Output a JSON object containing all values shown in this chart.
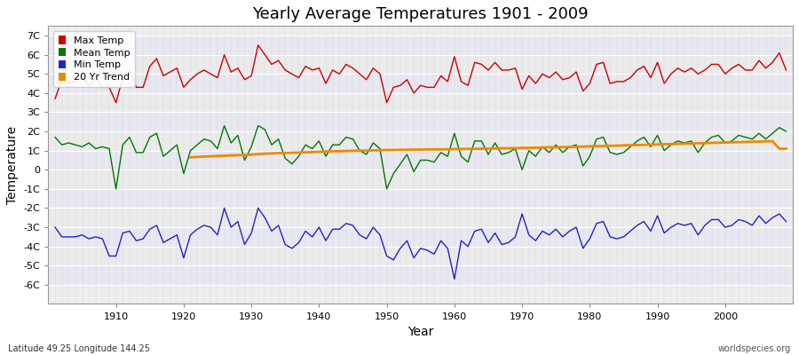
{
  "title": "Yearly Average Temperatures 1901 - 2009",
  "xlabel": "Year",
  "ylabel": "Temperature",
  "bottom_left_text": "Latitude 49.25 Longitude 144.25",
  "bottom_right_text": "worldspecies.org",
  "years": [
    1901,
    1902,
    1903,
    1904,
    1905,
    1906,
    1907,
    1908,
    1909,
    1910,
    1911,
    1912,
    1913,
    1914,
    1915,
    1916,
    1917,
    1918,
    1919,
    1920,
    1921,
    1922,
    1923,
    1924,
    1925,
    1926,
    1927,
    1928,
    1929,
    1930,
    1931,
    1932,
    1933,
    1934,
    1935,
    1936,
    1937,
    1938,
    1939,
    1940,
    1941,
    1942,
    1943,
    1944,
    1945,
    1946,
    1947,
    1948,
    1949,
    1950,
    1951,
    1952,
    1953,
    1954,
    1955,
    1956,
    1957,
    1958,
    1959,
    1960,
    1961,
    1962,
    1963,
    1964,
    1965,
    1966,
    1967,
    1968,
    1969,
    1970,
    1971,
    1972,
    1973,
    1974,
    1975,
    1976,
    1977,
    1978,
    1979,
    1980,
    1981,
    1982,
    1983,
    1984,
    1985,
    1986,
    1987,
    1988,
    1989,
    1990,
    1991,
    1992,
    1993,
    1994,
    1995,
    1996,
    1997,
    1998,
    1999,
    2000,
    2001,
    2002,
    2003,
    2004,
    2005,
    2006,
    2007,
    2008,
    2009
  ],
  "max_temp": [
    3.7,
    4.7,
    4.5,
    4.6,
    4.8,
    4.4,
    4.8,
    4.3,
    4.3,
    3.5,
    4.8,
    5.2,
    4.3,
    4.3,
    5.4,
    5.8,
    4.9,
    5.1,
    5.3,
    4.3,
    4.7,
    5.0,
    5.2,
    5.0,
    4.8,
    6.0,
    5.1,
    5.3,
    4.7,
    4.9,
    6.5,
    6.0,
    5.5,
    5.7,
    5.2,
    5.0,
    4.8,
    5.4,
    5.2,
    5.3,
    4.5,
    5.2,
    5.0,
    5.5,
    5.3,
    5.0,
    4.7,
    5.3,
    5.0,
    3.5,
    4.3,
    4.4,
    4.7,
    4.0,
    4.4,
    4.3,
    4.3,
    4.9,
    4.6,
    5.9,
    4.6,
    4.4,
    5.6,
    5.5,
    5.2,
    5.6,
    5.2,
    5.2,
    5.3,
    4.2,
    4.9,
    4.5,
    5.0,
    4.8,
    5.1,
    4.7,
    4.8,
    5.1,
    4.1,
    4.5,
    5.5,
    5.6,
    4.5,
    4.6,
    4.6,
    4.8,
    5.2,
    5.4,
    4.8,
    5.6,
    4.5,
    5.0,
    5.3,
    5.1,
    5.3,
    5.0,
    5.2,
    5.5,
    5.5,
    5.0,
    5.3,
    5.5,
    5.2,
    5.2,
    5.7,
    5.3,
    5.6,
    6.1,
    5.2
  ],
  "mean_temp": [
    1.7,
    1.3,
    1.4,
    1.3,
    1.2,
    1.4,
    1.1,
    1.2,
    1.1,
    -1.0,
    1.3,
    1.7,
    0.9,
    0.9,
    1.7,
    1.9,
    0.7,
    1.0,
    1.3,
    -0.2,
    1.0,
    1.3,
    1.6,
    1.5,
    1.1,
    2.3,
    1.4,
    1.8,
    0.5,
    1.2,
    2.3,
    2.1,
    1.3,
    1.6,
    0.6,
    0.3,
    0.7,
    1.3,
    1.1,
    1.5,
    0.7,
    1.3,
    1.3,
    1.7,
    1.6,
    1.0,
    0.8,
    1.4,
    1.1,
    -1.0,
    -0.2,
    0.3,
    0.8,
    -0.1,
    0.5,
    0.5,
    0.4,
    0.9,
    0.7,
    1.9,
    0.7,
    0.4,
    1.5,
    1.5,
    0.8,
    1.4,
    0.8,
    0.9,
    1.1,
    -0.0,
    1.0,
    0.7,
    1.2,
    0.9,
    1.3,
    0.9,
    1.2,
    1.3,
    0.2,
    0.7,
    1.6,
    1.7,
    0.9,
    0.8,
    0.9,
    1.2,
    1.5,
    1.7,
    1.2,
    1.8,
    1.0,
    1.3,
    1.5,
    1.4,
    1.5,
    0.9,
    1.4,
    1.7,
    1.8,
    1.4,
    1.5,
    1.8,
    1.7,
    1.6,
    1.9,
    1.6,
    1.9,
    2.2,
    2.0
  ],
  "min_temp": [
    -3.0,
    -3.5,
    -3.5,
    -3.5,
    -3.4,
    -3.6,
    -3.5,
    -3.6,
    -4.5,
    -4.5,
    -3.3,
    -3.2,
    -3.7,
    -3.6,
    -3.1,
    -2.9,
    -3.8,
    -3.6,
    -3.4,
    -4.6,
    -3.4,
    -3.1,
    -2.9,
    -3.0,
    -3.4,
    -2.0,
    -3.0,
    -2.7,
    -3.9,
    -3.3,
    -2.0,
    -2.5,
    -3.2,
    -2.9,
    -3.9,
    -4.1,
    -3.8,
    -3.2,
    -3.5,
    -3.0,
    -3.7,
    -3.1,
    -3.1,
    -2.8,
    -2.9,
    -3.4,
    -3.6,
    -3.0,
    -3.4,
    -4.5,
    -4.7,
    -4.1,
    -3.7,
    -4.6,
    -4.1,
    -4.2,
    -4.4,
    -3.7,
    -4.1,
    -5.7,
    -3.7,
    -4.0,
    -3.2,
    -3.1,
    -3.8,
    -3.3,
    -3.9,
    -3.8,
    -3.5,
    -2.3,
    -3.4,
    -3.7,
    -3.2,
    -3.4,
    -3.1,
    -3.5,
    -3.2,
    -3.0,
    -4.1,
    -3.6,
    -2.8,
    -2.7,
    -3.5,
    -3.6,
    -3.5,
    -3.2,
    -2.9,
    -2.7,
    -3.2,
    -2.4,
    -3.3,
    -3.0,
    -2.8,
    -2.9,
    -2.8,
    -3.4,
    -2.9,
    -2.6,
    -2.6,
    -3.0,
    -2.9,
    -2.6,
    -2.7,
    -2.9,
    -2.4,
    -2.8,
    -2.5,
    -2.3,
    -2.7
  ],
  "trend_20yr": [
    null,
    null,
    null,
    null,
    null,
    null,
    null,
    null,
    null,
    null,
    null,
    null,
    null,
    null,
    null,
    null,
    null,
    null,
    null,
    null,
    0.65,
    0.67,
    0.69,
    0.7,
    0.72,
    0.73,
    0.75,
    0.76,
    0.77,
    0.79,
    0.82,
    0.84,
    0.85,
    0.87,
    0.88,
    0.89,
    0.9,
    0.91,
    0.92,
    0.93,
    0.95,
    0.96,
    0.97,
    0.98,
    0.99,
    1.0,
    1.0,
    1.01,
    1.02,
    1.03,
    1.03,
    1.04,
    1.04,
    1.05,
    1.05,
    1.06,
    1.06,
    1.06,
    1.07,
    1.08,
    1.08,
    1.09,
    1.09,
    1.1,
    1.1,
    1.11,
    1.12,
    1.12,
    1.13,
    1.14,
    1.14,
    1.15,
    1.16,
    1.17,
    1.17,
    1.18,
    1.19,
    1.2,
    1.21,
    1.22,
    1.23,
    1.24,
    1.25,
    1.26,
    1.27,
    1.28,
    1.29,
    1.3,
    1.31,
    1.32,
    1.33,
    1.34,
    1.35,
    1.36,
    1.37,
    1.38,
    1.39,
    1.4,
    1.41,
    1.42,
    1.43,
    1.44,
    1.45,
    1.46,
    1.47,
    1.48,
    1.49,
    1.1,
    1.1
  ],
  "max_color": "#cc0000",
  "mean_color": "#007700",
  "min_color": "#2222cc",
  "trend_color": "#ee8800",
  "fig_background": "#ffffff",
  "plot_background_light": "#eeeeee",
  "plot_background_dark": "#e0e0e8",
  "grid_color_major": "#ffffff",
  "grid_color_minor": "#dddddd",
  "ylim": [
    -7,
    7.5
  ],
  "yticks": [
    -6,
    -5,
    -4,
    -3,
    -2,
    -1,
    0,
    1,
    2,
    3,
    4,
    5,
    6,
    7
  ],
  "ytick_labels": [
    "-6C",
    "-5C",
    "-4C",
    "-3C",
    "-2C",
    "-1C",
    "0",
    "1C",
    "2C",
    "3C",
    "4C",
    "5C",
    "6C",
    "7C"
  ],
  "xticks": [
    1910,
    1920,
    1930,
    1940,
    1950,
    1960,
    1970,
    1980,
    1990,
    2000
  ],
  "title_fontsize": 13,
  "legend_fontsize": 8,
  "axis_fontsize": 8
}
